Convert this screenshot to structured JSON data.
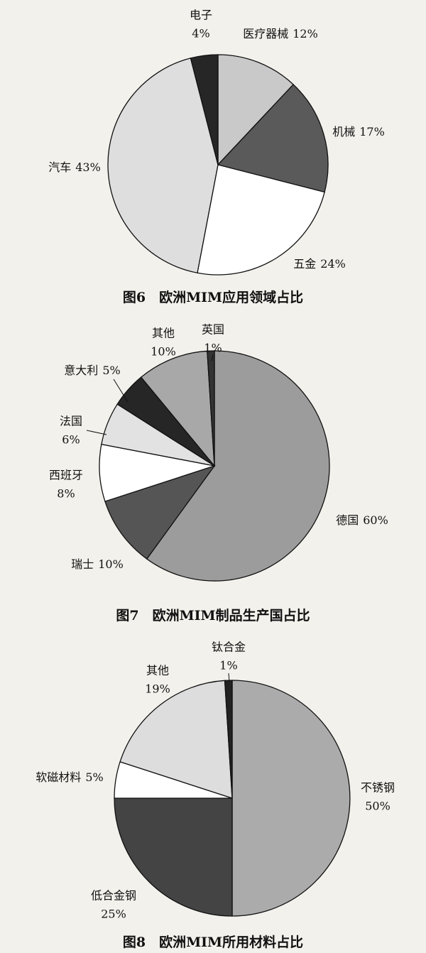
{
  "chart_data": [
    {
      "type": "pie",
      "title": "图6　欧洲MIM应用领域占比",
      "categories": [
        "医疗器械",
        "机械",
        "五金",
        "汽车",
        "电子"
      ],
      "values": [
        12,
        17,
        24,
        43,
        4
      ],
      "value_labels": [
        "12%",
        "17%",
        "24%",
        "43%",
        "4%"
      ],
      "colors": [
        "#c9c9c9",
        "#5a5a5a",
        "#ffffff",
        "#dedede",
        "#262626"
      ]
    },
    {
      "type": "pie",
      "title": "图7　欧洲MIM制品生产国占比",
      "categories": [
        "德国",
        "瑞士",
        "西班牙",
        "法国",
        "意大利",
        "其他",
        "英国"
      ],
      "values": [
        60,
        10,
        8,
        6,
        5,
        10,
        1
      ],
      "value_labels": [
        "60%",
        "10%",
        "8%",
        "6%",
        "5%",
        "10%",
        "1%"
      ],
      "colors": [
        "#9c9c9c",
        "#555555",
        "#ffffff",
        "#e2e2e2",
        "#262626",
        "#a8a8a8",
        "#333333"
      ]
    },
    {
      "type": "pie",
      "title": "图8　欧洲MIM所用材料占比",
      "categories": [
        "不锈钢",
        "低合金钢",
        "软磁材料",
        "其他",
        "钛合金"
      ],
      "values": [
        50,
        25,
        5,
        19,
        1
      ],
      "value_labels": [
        "50%",
        "25%",
        "5%",
        "19%",
        "1%"
      ],
      "colors": [
        "#ababab",
        "#444444",
        "#ffffff",
        "#dddddd",
        "#222222"
      ]
    }
  ]
}
